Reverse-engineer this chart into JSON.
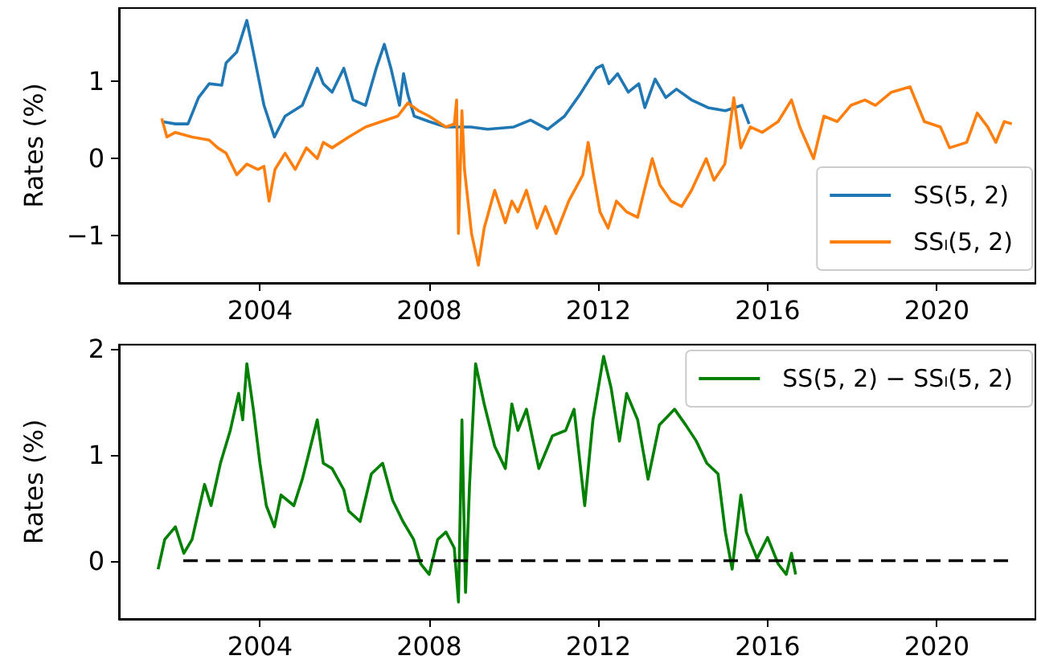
{
  "chart_data": [
    {
      "type": "line",
      "ylabel": "Rates (%)",
      "xlim": [
        "2000-09",
        "2022-05"
      ],
      "xticks": [
        "2004",
        "2008",
        "2012",
        "2016",
        "2020"
      ],
      "ylim": [
        -1.61,
        1.95
      ],
      "yticks": [
        -1,
        0,
        1
      ],
      "legend": "bottom right",
      "series": [
        {
          "name": "SS(5, 2)",
          "color": "#1f77b4",
          "x": [
            "2001-09-05",
            "2002-01-01",
            "2002-04-20",
            "2002-07-20",
            "2002-10-20",
            "2003-02-05",
            "2003-03-15",
            "2003-06-15",
            "2003-09-10",
            "2003-11-05",
            "2004-02-05",
            "2004-05-05",
            "2004-08-05",
            "2005-01-01",
            "2005-05-10",
            "2005-07-01",
            "2005-09-15",
            "2005-12-25",
            "2006-03-15",
            "2006-07-01",
            "2006-10-01",
            "2006-12-10",
            "2007-02-05",
            "2007-04-20",
            "2007-05-25",
            "2007-07-01",
            "2007-08-25",
            "2008-01-01",
            "2008-05-25",
            "2008-12-25",
            "2009-05-20",
            "2010-01-01",
            "2010-05-25",
            "2010-10-20",
            "2011-03-15",
            "2011-07-25",
            "2011-12-15",
            "2012-02-05",
            "2012-04-01",
            "2012-06-15",
            "2012-09-15",
            "2012-12-15",
            "2013-02-05",
            "2013-05-05",
            "2013-08-05",
            "2013-11-05",
            "2014-03-15",
            "2014-08-05",
            "2015-01-01",
            "2015-05-25",
            "2015-07-25"
          ],
          "values": [
            0.48,
            0.45,
            0.45,
            0.79,
            0.97,
            0.95,
            1.24,
            1.38,
            1.79,
            1.38,
            0.69,
            0.28,
            0.55,
            0.69,
            1.17,
            0.97,
            0.86,
            1.17,
            0.76,
            0.69,
            1.17,
            1.48,
            1.17,
            0.69,
            1.1,
            0.83,
            0.55,
            0.48,
            0.41,
            0.41,
            0.38,
            0.41,
            0.5,
            0.38,
            0.55,
            0.83,
            1.17,
            1.21,
            0.97,
            1.1,
            0.86,
            0.97,
            0.66,
            1.03,
            0.79,
            0.9,
            0.76,
            0.66,
            0.62,
            0.69,
            0.45
          ]
        },
        {
          "name": "SSₗ(5, 2)",
          "color": "#ff7f0e",
          "x": [
            "2001-09-05",
            "2001-10-20",
            "2002-01-01",
            "2002-05-25",
            "2002-10-20",
            "2003-01-01",
            "2003-03-15",
            "2003-06-15",
            "2003-09-10",
            "2003-12-15",
            "2004-02-05",
            "2004-03-20",
            "2004-05-10",
            "2004-08-05",
            "2004-11-01",
            "2005-02-05",
            "2005-05-10",
            "2005-07-01",
            "2005-09-15",
            "2006-02-05",
            "2006-07-01",
            "2006-11-15",
            "2007-04-05",
            "2007-07-01",
            "2007-10-01",
            "2008-01-01",
            "2008-05-25",
            "2008-08-05",
            "2008-08-25",
            "2008-09-10",
            "2008-10-10",
            "2008-11-01",
            "2009-01-01",
            "2009-03-01",
            "2009-04-20",
            "2009-07-20",
            "2009-10-20",
            "2009-12-15",
            "2010-02-05",
            "2010-04-20",
            "2010-07-20",
            "2010-10-01",
            "2011-01-01",
            "2011-04-20",
            "2011-08-20",
            "2011-10-05",
            "2011-11-20",
            "2012-01-15",
            "2012-03-25",
            "2012-06-05",
            "2012-09-01",
            "2012-12-05",
            "2013-04-10",
            "2013-06-15",
            "2013-09-20",
            "2013-12-20",
            "2014-03-15",
            "2014-07-20",
            "2014-09-25",
            "2014-12-28",
            "2015-03-15",
            "2015-05-15",
            "2015-08-05",
            "2015-11-15",
            "2016-04-01",
            "2016-07-25",
            "2016-10-05",
            "2017-02-01",
            "2017-05-01",
            "2017-08-25",
            "2017-12-20",
            "2018-04-20",
            "2018-07-20",
            "2018-12-05",
            "2019-05-15",
            "2019-09-15",
            "2020-02-01",
            "2020-04-20",
            "2020-09-15",
            "2020-12-15",
            "2021-03-15",
            "2021-05-25",
            "2021-08-05",
            "2021-10-10"
          ],
          "values": [
            0.52,
            0.28,
            0.34,
            0.28,
            0.24,
            0.14,
            0.07,
            -0.21,
            -0.07,
            -0.14,
            -0.1,
            -0.55,
            -0.14,
            0.07,
            -0.14,
            0.14,
            0,
            0.21,
            0.14,
            0.28,
            0.41,
            0.48,
            0.55,
            0.72,
            0.62,
            0.55,
            0.41,
            0.45,
            0.76,
            -0.97,
            0.62,
            -0.14,
            -0.97,
            -1.38,
            -0.9,
            -0.41,
            -0.83,
            -0.55,
            -0.69,
            -0.41,
            -0.9,
            -0.62,
            -0.97,
            -0.55,
            -0.21,
            0.21,
            -0.21,
            -0.69,
            -0.9,
            -0.55,
            -0.69,
            -0.76,
            0,
            -0.34,
            -0.55,
            -0.62,
            -0.41,
            0,
            -0.28,
            -0.07,
            0.79,
            0.14,
            0.41,
            0.34,
            0.48,
            0.76,
            0.41,
            0,
            0.55,
            0.48,
            0.69,
            0.76,
            0.69,
            0.86,
            0.93,
            0.48,
            0.41,
            0.14,
            0.21,
            0.59,
            0.41,
            0.21,
            0.48,
            0.45
          ]
        }
      ]
    },
    {
      "type": "line",
      "ylabel": "Rates (%)",
      "xlim": [
        "2000-09",
        "2022-05"
      ],
      "xticks": [
        "2004",
        "2008",
        "2012",
        "2016",
        "2020"
      ],
      "ylim": [
        -0.55,
        2.04
      ],
      "yticks": [
        0,
        1,
        2
      ],
      "legend": "top right",
      "series": [
        {
          "name": "SS(5, 2) − SSₗ(5, 2)",
          "color": "#008000",
          "x": [
            "2001-08-05",
            "2001-10-01",
            "2002-01-01",
            "2002-03-15",
            "2002-05-25",
            "2002-09-10",
            "2002-11-05",
            "2003-01-25",
            "2003-04-20",
            "2003-07-01",
            "2003-08-05",
            "2003-09-10",
            "2003-11-05",
            "2004-01-01",
            "2004-02-25",
            "2004-05-05",
            "2004-07-01",
            "2004-10-20",
            "2005-01-01",
            "2005-05-10",
            "2005-07-01",
            "2005-09-15",
            "2005-12-25",
            "2006-02-05",
            "2006-05-15",
            "2006-08-20",
            "2006-11-25",
            "2007-02-20",
            "2007-05-20",
            "2007-08-20",
            "2007-10-20",
            "2008-01-01",
            "2008-03-15",
            "2008-05-25",
            "2008-08-05",
            "2008-09-10",
            "2008-10-10",
            "2008-11-10",
            "2008-12-15",
            "2009-02-05",
            "2009-04-20",
            "2009-07-20",
            "2009-10-20",
            "2009-12-15",
            "2010-02-05",
            "2010-04-20",
            "2010-08-05",
            "2010-12-01",
            "2011-03-25",
            "2011-06-05",
            "2011-09-05",
            "2011-11-15",
            "2012-02-15",
            "2012-04-20",
            "2012-07-01",
            "2012-09-01",
            "2012-12-05",
            "2013-03-05",
            "2013-06-10",
            "2013-10-20",
            "2014-01-25",
            "2014-04-25",
            "2014-07-25",
            "2014-10-30",
            "2015-01-01",
            "2015-03-01",
            "2015-05-15",
            "2015-07-01",
            "2015-10-01",
            "2016-01-01",
            "2016-04-01",
            "2016-06-10",
            "2016-07-25",
            "2016-08-30"
          ],
          "values": [
            -0.08,
            0.2,
            0.32,
            0.07,
            0.2,
            0.72,
            0.52,
            0.92,
            1.23,
            1.58,
            1.33,
            1.86,
            1.43,
            0.92,
            0.52,
            0.32,
            0.62,
            0.52,
            0.77,
            1.33,
            0.92,
            0.87,
            0.67,
            0.47,
            0.37,
            0.82,
            0.92,
            0.57,
            0.37,
            0.2,
            -0.03,
            -0.13,
            0.2,
            0.27,
            0.12,
            -0.39,
            1.33,
            -0.3,
            0.72,
            1.86,
            1.48,
            1.08,
            0.87,
            1.48,
            1.23,
            1.43,
            0.87,
            1.18,
            1.23,
            1.43,
            0.52,
            1.33,
            1.93,
            1.63,
            1.13,
            1.58,
            1.33,
            0.77,
            1.28,
            1.43,
            1.28,
            1.13,
            0.92,
            0.82,
            0.27,
            -0.08,
            0.62,
            0.27,
            0.02,
            0.22,
            -0.03,
            -0.13,
            0.07,
            -0.13
          ]
        },
        {
          "color": "#000000",
          "line_style": "dashed",
          "x": [
            "2002-03-10",
            "2021-09-10"
          ],
          "values": [
            0,
            0
          ]
        }
      ]
    }
  ]
}
